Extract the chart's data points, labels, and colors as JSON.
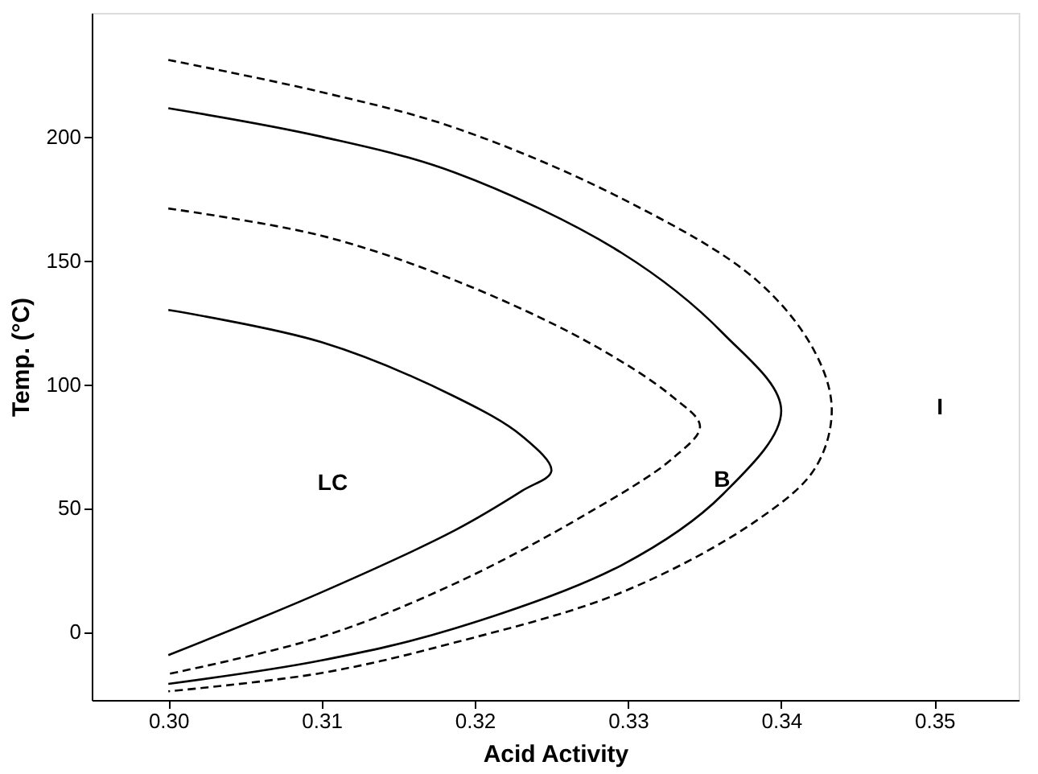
{
  "chart_data": {
    "type": "line",
    "xlabel": "Acid Activity",
    "ylabel": "Temp. (°C)",
    "xlim": [
      0.295,
      0.3555
    ],
    "ylim": [
      -27.5,
      250
    ],
    "xticks": [
      {
        "value": 0.3,
        "label": "0.30"
      },
      {
        "value": 0.31,
        "label": "0.31"
      },
      {
        "value": 0.32,
        "label": "0.32"
      },
      {
        "value": 0.33,
        "label": "0.33"
      },
      {
        "value": 0.34,
        "label": "0.34"
      },
      {
        "value": 0.35,
        "label": "0.35"
      }
    ],
    "yticks": [
      0,
      50,
      100,
      150,
      200
    ],
    "grid": false,
    "marker": "none",
    "series": [
      {
        "color": "#000000",
        "line_style": "solid",
        "x": [
          0.3,
          0.31,
          0.3187,
          0.3231,
          0.325,
          0.3231,
          0.3187,
          0.31,
          0.3
        ],
        "values": [
          130,
          117,
          95,
          79,
          65,
          57,
          41,
          16,
          -9.4
        ]
      },
      {
        "color": "#000000",
        "line_style": "dashed",
        "x": [
          0.3,
          0.31,
          0.3187,
          0.3274,
          0.3329,
          0.3347,
          0.3329,
          0.3274,
          0.3187,
          0.31,
          0.3
        ],
        "values": [
          171,
          160,
          142,
          117,
          95,
          83,
          70,
          48,
          19.5,
          -2,
          -17
        ]
      },
      {
        "color": "#000000",
        "line_style": "solid",
        "x": [
          0.3,
          0.31,
          0.3187,
          0.3296,
          0.3362,
          0.34,
          0.3362,
          0.3296,
          0.3187,
          0.31,
          0.3
        ],
        "values": [
          211.5,
          200,
          185.5,
          153,
          120.6,
          89.5,
          55.6,
          27,
          1.4,
          -11.5,
          -21
        ]
      },
      {
        "color": "#000000",
        "line_style": "dashed",
        "x": [
          0.3,
          0.31,
          0.3187,
          0.3296,
          0.3384,
          0.3422,
          0.3433,
          0.3422,
          0.3384,
          0.3296,
          0.3187,
          0.31,
          0.3
        ],
        "values": [
          231,
          218,
          203.6,
          175,
          142,
          113,
          89.5,
          66,
          45,
          16,
          -4.3,
          -16.6,
          -24
        ]
      }
    ],
    "annotations": [
      "LC",
      "B",
      "I"
    ]
  }
}
